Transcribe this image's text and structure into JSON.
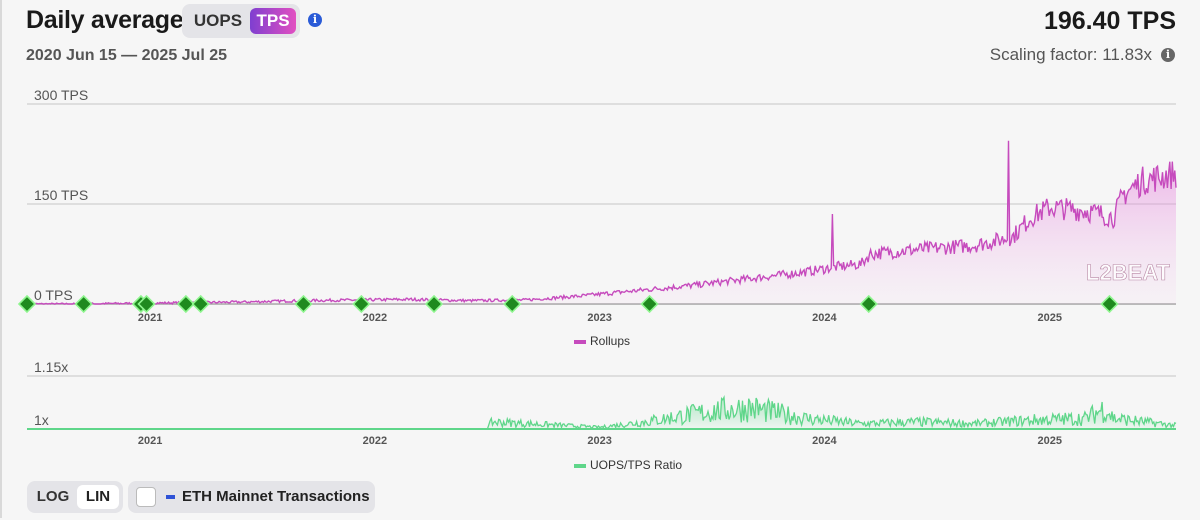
{
  "header": {
    "title": "Daily average",
    "unit_options": [
      "UOPS",
      "TPS"
    ],
    "selected_unit": "TPS",
    "date_range": "2020 Jun 15 — 2025 Jul 25",
    "current_value": "196.40 TPS",
    "scaling_factor": "Scaling factor: 11.83x"
  },
  "controls": {
    "scale_options": [
      "LOG",
      "LIN"
    ],
    "selected_scale": "LIN",
    "eth_mainnet_label": "ETH Mainnet Transactions",
    "eth_mainnet_checked": false
  },
  "watermark": {
    "text": "L2BEAT"
  },
  "colors": {
    "rollups": "#c64bbd",
    "ratio": "#5fd68a",
    "milestone": "#1f8a1f",
    "eth": "#2f52d6"
  },
  "chart_data": [
    {
      "type": "area",
      "series": [
        {
          "name": "Rollups",
          "x": [
            "2020-06-15",
            "2020-09-01",
            "2020-12-01",
            "2021-03-01",
            "2021-06-01",
            "2021-09-01",
            "2021-12-01",
            "2022-03-01",
            "2022-06-01",
            "2022-09-01",
            "2022-12-01",
            "2023-03-01",
            "2023-06-01",
            "2023-09-01",
            "2023-12-01",
            "2024-01-15",
            "2024-03-01",
            "2024-03-15",
            "2024-06-01",
            "2024-09-01",
            "2024-11-01",
            "2024-12-01",
            "2025-01-01",
            "2025-03-01",
            "2025-04-15",
            "2025-05-01",
            "2025-06-01",
            "2025-07-25"
          ],
          "values": [
            0,
            0,
            1,
            2,
            3,
            5,
            6,
            7,
            5,
            6,
            12,
            20,
            28,
            38,
            48,
            55,
            60,
            75,
            82,
            88,
            100,
            130,
            145,
            140,
            130,
            165,
            185,
            196
          ]
        }
      ],
      "ylim": [
        0,
        300
      ],
      "y_ticks": [
        "0 TPS",
        "150 TPS",
        "300 TPS"
      ],
      "x_ticks": [
        "2021",
        "2022",
        "2023",
        "2024",
        "2025"
      ],
      "spikes": [
        {
          "x": "2024-01-15",
          "value": 135
        },
        {
          "x": "2024-10-26",
          "value": 245
        }
      ],
      "milestones": [
        "2020-06-15",
        "2020-09-15",
        "2020-12-17",
        "2020-12-26",
        "2021-02-28",
        "2021-03-24",
        "2021-09-07",
        "2021-12-10",
        "2022-04-07",
        "2022-08-12",
        "2023-03-23",
        "2024-03-13",
        "2025-04-08"
      ],
      "legend_position": "bottom-center",
      "grid": true
    },
    {
      "type": "area",
      "series": [
        {
          "name": "UOPS/TPS Ratio",
          "x": [
            "2020-06-15",
            "2022-01-01",
            "2022-07-01",
            "2022-07-10",
            "2023-01-01",
            "2023-03-15",
            "2023-07-01",
            "2023-09-01",
            "2023-12-01",
            "2024-03-01",
            "2024-06-01",
            "2024-09-01",
            "2024-12-01",
            "2025-03-01",
            "2025-04-01",
            "2025-04-15",
            "2025-07-25"
          ],
          "values": [
            1.0,
            1.0,
            1.0,
            1.02,
            1.005,
            1.02,
            1.05,
            1.06,
            1.03,
            1.015,
            1.02,
            1.015,
            1.025,
            1.03,
            1.06,
            1.03,
            1.01
          ]
        }
      ],
      "ylim": [
        1.0,
        1.15
      ],
      "y_ticks": [
        "1x",
        "1.15x"
      ],
      "x_ticks": [
        "2021",
        "2022",
        "2023",
        "2024",
        "2025"
      ],
      "legend_position": "bottom-center",
      "grid": true
    }
  ]
}
